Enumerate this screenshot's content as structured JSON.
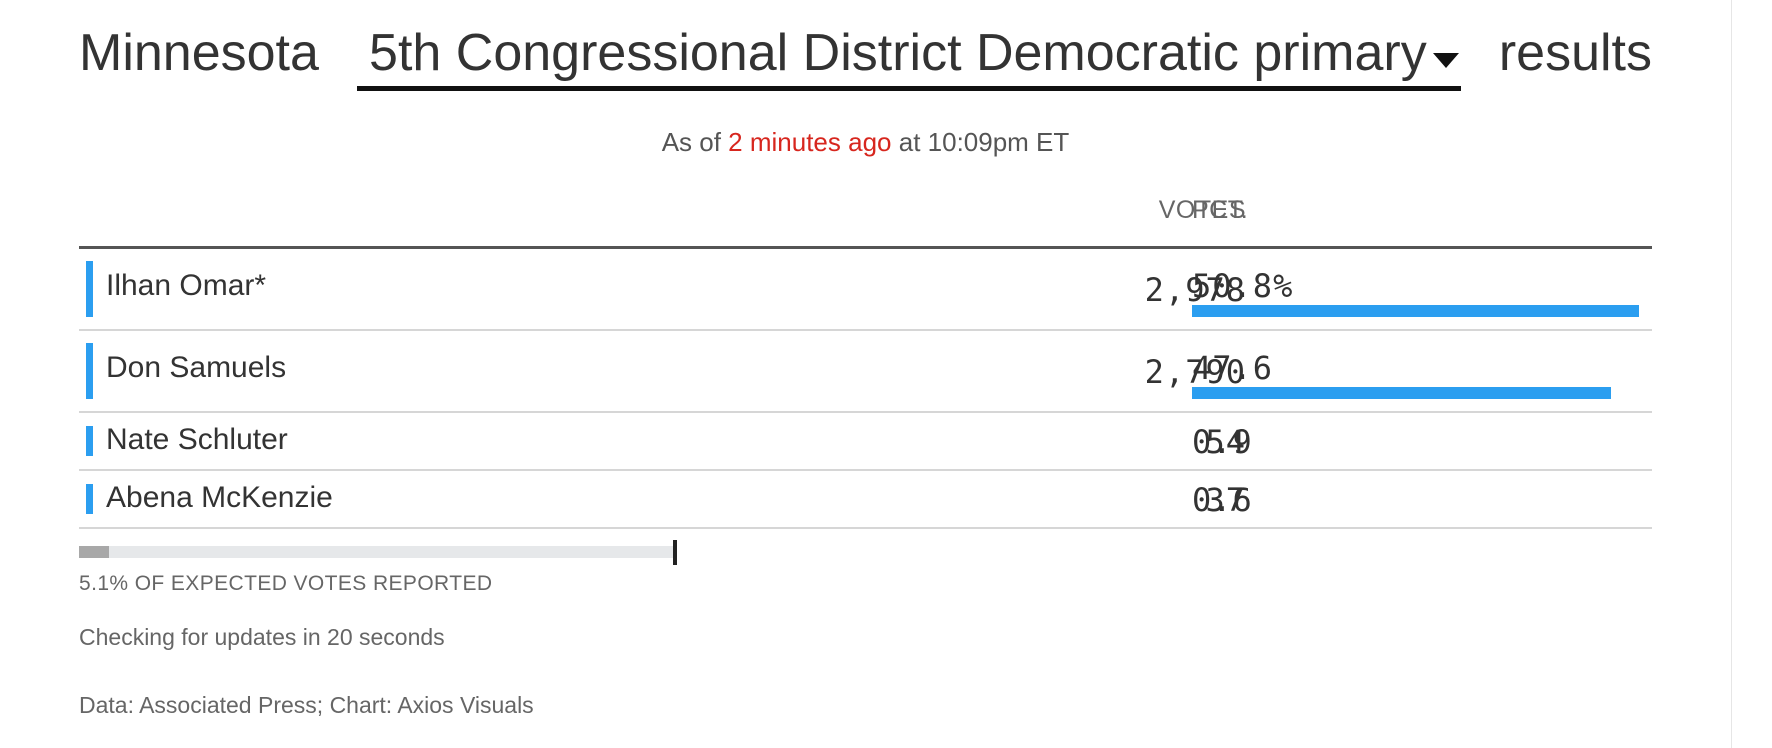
{
  "title": {
    "prefix": "Minnesota",
    "race_selected": "5th Congressional District Democratic primary",
    "suffix": "results"
  },
  "status": {
    "as_of_label": "As of",
    "relative_time": "2 minutes ago",
    "at_label": "at",
    "clock_time": "10:09pm ET"
  },
  "table": {
    "votes_header": "VOTES",
    "pct_header": "PCT.",
    "rows": [
      {
        "name": "Ilhan Omar*",
        "votes": "2,978",
        "pct": "50.8%",
        "pct_value": 50.8,
        "show_bar": true
      },
      {
        "name": "Don Samuels",
        "votes": "2,790",
        "pct": "47.6",
        "pct_value": 47.6,
        "show_bar": true
      },
      {
        "name": "Nate Schluter",
        "votes": "54",
        "pct": "0.9",
        "pct_value": 0.9,
        "show_bar": false
      },
      {
        "name": "Abena McKenzie",
        "votes": "37",
        "pct": "0.6",
        "pct_value": 0.6,
        "show_bar": false
      }
    ]
  },
  "progress": {
    "reported_percent": 5.1,
    "label": "5.1% OF EXPECTED VOTES REPORTED"
  },
  "update_notice": "Checking for updates in 20 seconds",
  "source_note": "Data: Associated Press; Chart: Axios Visuals",
  "colors": {
    "candidate_accent": "#2b9ef0",
    "live_time": "#d7261e",
    "progress_fill": "#a8a8a8",
    "progress_track": "#e6e8ea"
  }
}
